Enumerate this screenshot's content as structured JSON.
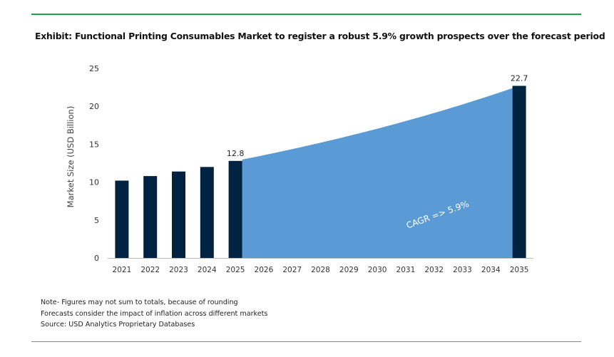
{
  "title": "Exhibit: Functional Printing Consumables Market to register a robust 5.9% growth prospects over the forecast period",
  "notes": [
    "Note- Figures may not sum to totals, because of rounding",
    "Forecasts consider the impact of inflation across different markets",
    "Source: USD Analytics Proprietary Databases"
  ],
  "colors": {
    "bar": "#002341",
    "area": "#5b9bd5",
    "accent": "#1fa34a"
  },
  "chart_data": {
    "type": "bar",
    "title": "Exhibit: Functional Printing Consumables Market to register a robust 5.9% growth prospects over the forecast period",
    "xlabel": "",
    "ylabel": "Market Size (USD Billion)",
    "ylim": [
      0,
      25
    ],
    "yticks": [
      "0",
      "5",
      "10",
      "15",
      "20",
      "25"
    ],
    "categories": [
      "2021",
      "2022",
      "2023",
      "2024",
      "2025",
      "2026",
      "2027",
      "2028",
      "2029",
      "2030",
      "2031",
      "2032",
      "2033",
      "2034",
      "2035"
    ],
    "bars": [
      {
        "year": "2021",
        "value": 10.2
      },
      {
        "year": "2022",
        "value": 10.8
      },
      {
        "year": "2023",
        "value": 11.4
      },
      {
        "year": "2024",
        "value": 12.0
      },
      {
        "year": "2025",
        "value": 12.8,
        "label": "12.8"
      },
      {
        "year": "2035",
        "value": 22.7,
        "label": "22.7"
      }
    ],
    "area": {
      "from": "2025",
      "to": "2035",
      "start": 12.8,
      "growth_rate": 0.059
    },
    "annotation": "CAGR =>  5.9%"
  }
}
